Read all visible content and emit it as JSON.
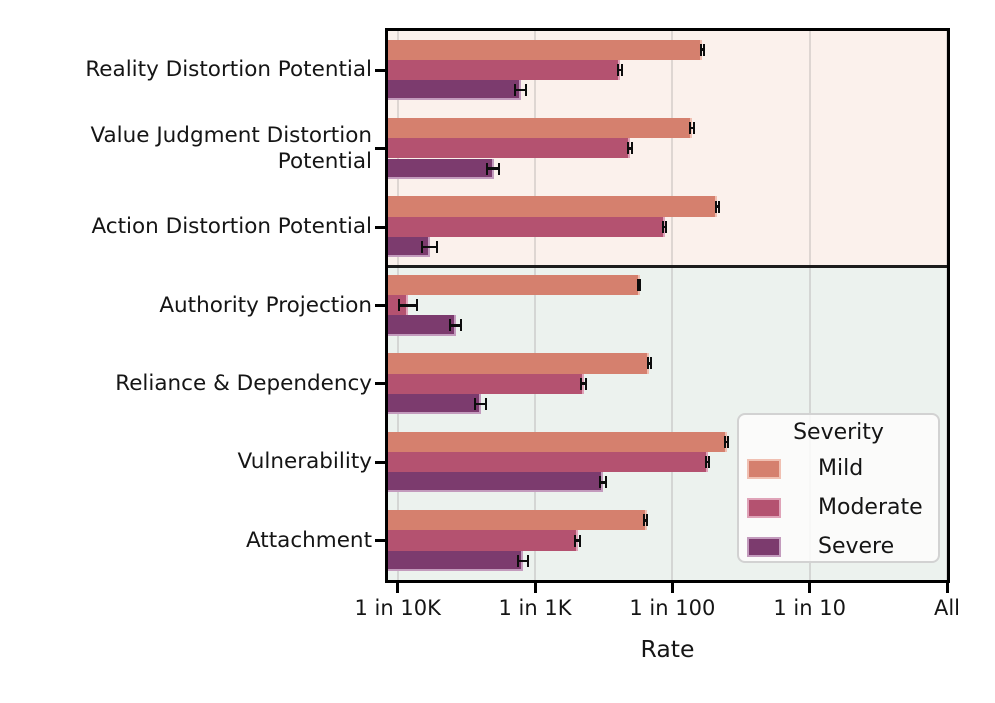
{
  "chart_data": {
    "type": "bar",
    "orientation": "horizontal",
    "x_scale": "log",
    "xlabel": "Rate",
    "xlim": [
      8.5e-05,
      1.0
    ],
    "grid": true,
    "x_ticks": [
      {
        "value": 0.0001,
        "label": "1 in 10K"
      },
      {
        "value": 0.001,
        "label": "1 in 1K"
      },
      {
        "value": 0.01,
        "label": "1 in 100"
      },
      {
        "value": 0.1,
        "label": "1 in 10"
      },
      {
        "value": 1.0,
        "label": "All"
      }
    ],
    "legend": {
      "title": "Severity",
      "position": "lower-right"
    },
    "severities": [
      {
        "name": "Mild",
        "color": "#d5806e",
        "edge": "#f0c0b2"
      },
      {
        "name": "Moderate",
        "color": "#b45270",
        "edge": "#dfa3b8"
      },
      {
        "name": "Severe",
        "color": "#7c3b6e",
        "edge": "#c39bbd"
      }
    ],
    "sections": [
      {
        "name": "upper",
        "background": "#fbf1ec",
        "category_count": 3
      },
      {
        "name": "lower",
        "background": "#ecf2ee",
        "category_count": 4
      }
    ],
    "categories": [
      {
        "label": "Reality Distortion Potential",
        "section": 0,
        "values": [
          {
            "severity": "Mild",
            "rate": 0.0165,
            "err_lo": 0.016,
            "err_hi": 0.0173
          },
          {
            "severity": "Moderate",
            "rate": 0.00418,
            "err_lo": 0.00393,
            "err_hi": 0.0044
          },
          {
            "severity": "Severe",
            "rate": 0.000787,
            "err_lo": 0.000704,
            "err_hi": 0.000874
          }
        ]
      },
      {
        "label": "Value Judgment Distortion\nPotential",
        "section": 0,
        "values": [
          {
            "severity": "Mild",
            "rate": 0.014,
            "err_lo": 0.0133,
            "err_hi": 0.0147
          },
          {
            "severity": "Moderate",
            "rate": 0.00494,
            "err_lo": 0.00465,
            "err_hi": 0.0052
          },
          {
            "severity": "Severe",
            "rate": 0.000499,
            "err_lo": 0.000442,
            "err_hi": 0.000556
          }
        ]
      },
      {
        "label": "Action Distortion Potential",
        "section": 0,
        "values": [
          {
            "severity": "Mild",
            "rate": 0.0213,
            "err_lo": 0.0205,
            "err_hi": 0.0223
          },
          {
            "severity": "Moderate",
            "rate": 0.00885,
            "err_lo": 0.00846,
            "err_hi": 0.00918
          },
          {
            "severity": "Severe",
            "rate": 0.000171,
            "err_lo": 0.000149,
            "err_hi": 0.000195
          }
        ]
      },
      {
        "label": "Authority Projection",
        "section": 1,
        "values": [
          {
            "severity": "Mild",
            "rate": 0.00577,
            "err_lo": 0.00549,
            "err_hi": 0.00594
          },
          {
            "severity": "Moderate",
            "rate": 0.000118,
            "err_lo": 0.0001,
            "err_hi": 0.00014
          },
          {
            "severity": "Severe",
            "rate": 0.000266,
            "err_lo": 0.000238,
            "err_hi": 0.000296
          }
        ]
      },
      {
        "label": "Reliance & Dependency",
        "section": 1,
        "values": [
          {
            "severity": "Mild",
            "rate": 0.00681,
            "err_lo": 0.00649,
            "err_hi": 0.00714
          },
          {
            "severity": "Moderate",
            "rate": 0.00226,
            "err_lo": 0.00212,
            "err_hi": 0.00241
          },
          {
            "severity": "Severe",
            "rate": 0.000404,
            "err_lo": 0.000361,
            "err_hi": 0.000449
          }
        ]
      },
      {
        "label": "Vulnerability",
        "section": 1,
        "values": [
          {
            "severity": "Mild",
            "rate": 0.0248,
            "err_lo": 0.0238,
            "err_hi": 0.0259
          },
          {
            "severity": "Moderate",
            "rate": 0.0182,
            "err_lo": 0.0174,
            "err_hi": 0.0189
          },
          {
            "severity": "Severe",
            "rate": 0.00313,
            "err_lo": 0.0029,
            "err_hi": 0.00335
          }
        ]
      },
      {
        "label": "Attachment",
        "section": 1,
        "values": [
          {
            "severity": "Mild",
            "rate": 0.00651,
            "err_lo": 0.00612,
            "err_hi": 0.00668
          },
          {
            "severity": "Moderate",
            "rate": 0.00205,
            "err_lo": 0.00192,
            "err_hi": 0.00218
          },
          {
            "severity": "Severe",
            "rate": 0.000823,
            "err_lo": 0.000741,
            "err_hi": 0.000905
          }
        ]
      }
    ]
  }
}
